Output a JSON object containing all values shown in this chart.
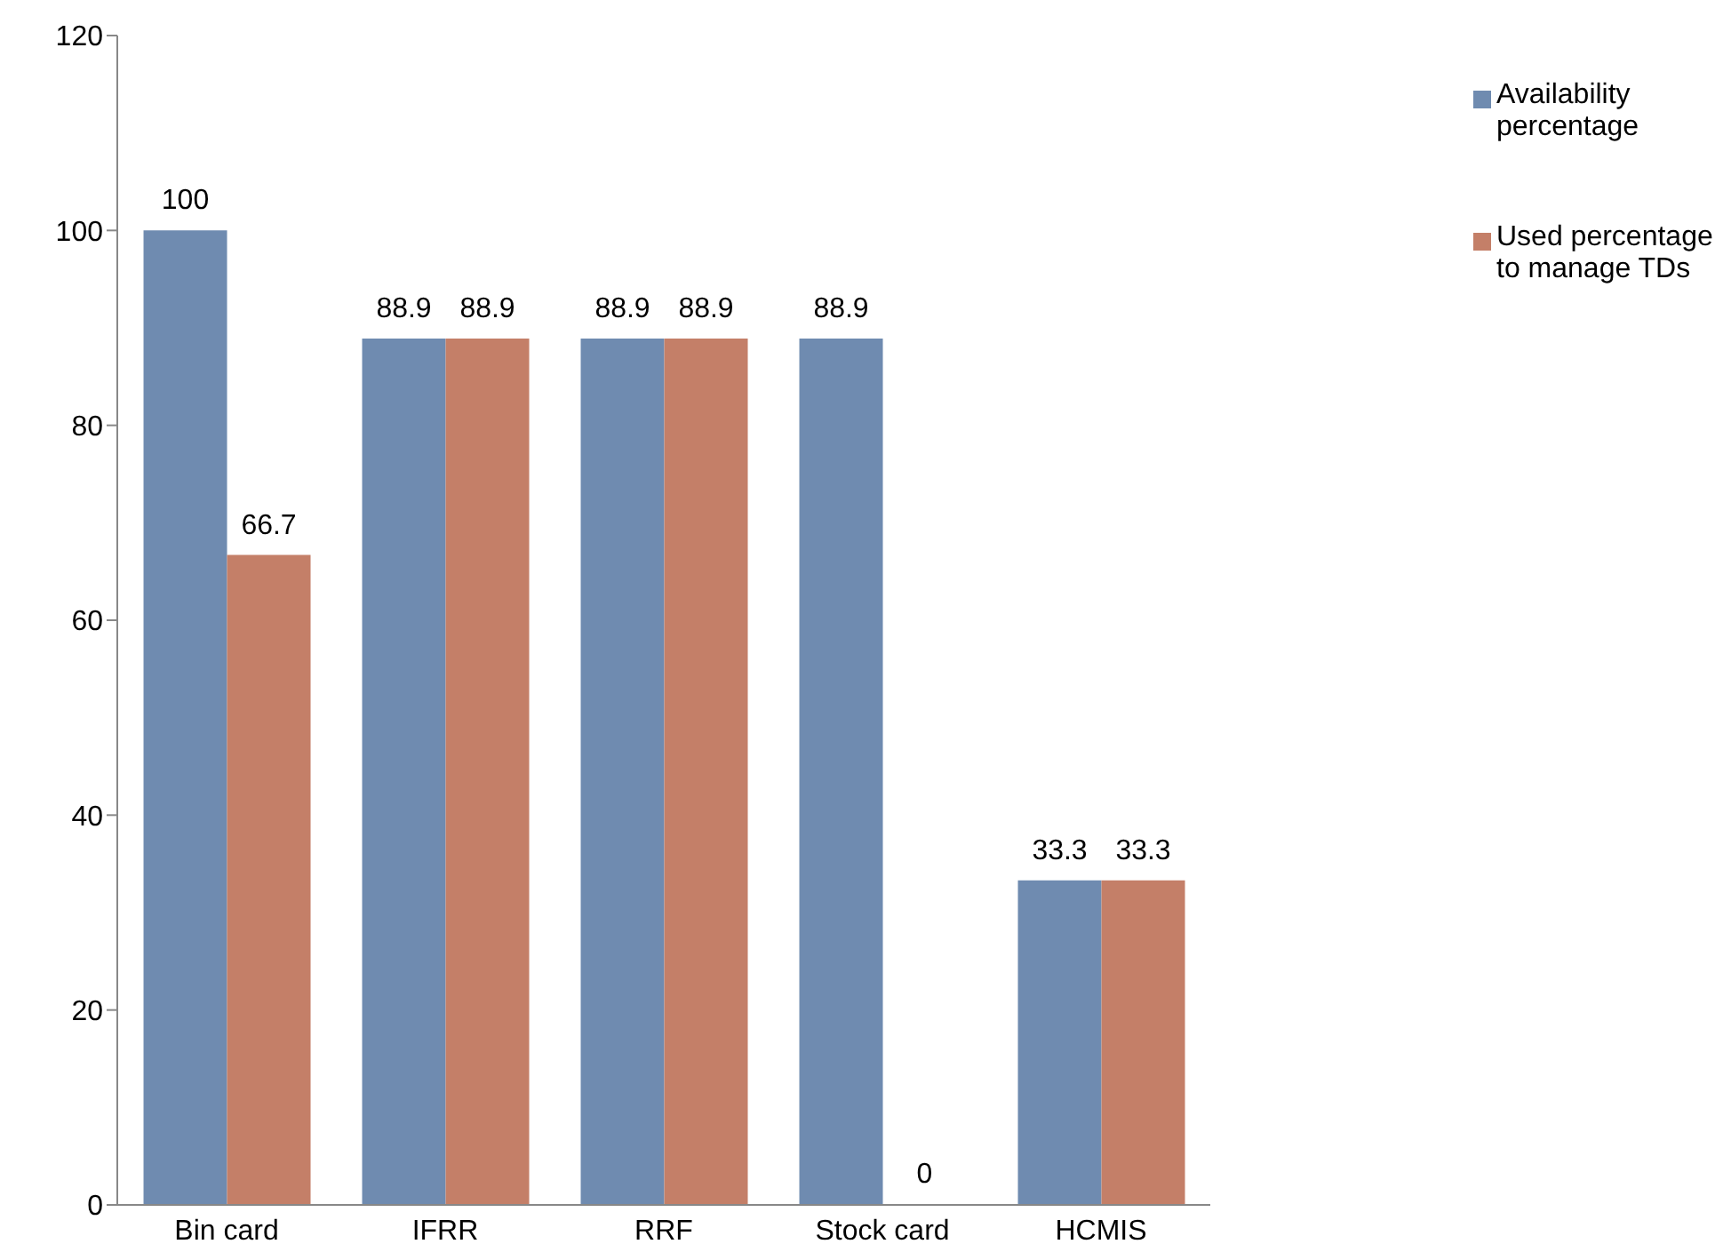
{
  "chart_data": {
    "type": "bar",
    "categories": [
      "Bin card",
      "IFRR",
      "RRF",
      "Stock card",
      "HCMIS"
    ],
    "series": [
      {
        "name": "Availability percentage",
        "color": "#6f8bb0",
        "values": [
          100,
          88.9,
          88.9,
          88.9,
          33.3
        ]
      },
      {
        "name": "Used percentage to manage TDs",
        "color": "#c47f68",
        "values": [
          66.7,
          88.9,
          88.9,
          0,
          33.3
        ]
      }
    ],
    "ylim": [
      0,
      120
    ],
    "yticks": [
      0,
      20,
      40,
      60,
      80,
      100,
      120
    ],
    "data_labels": true,
    "legend": "top right",
    "grid": false
  }
}
